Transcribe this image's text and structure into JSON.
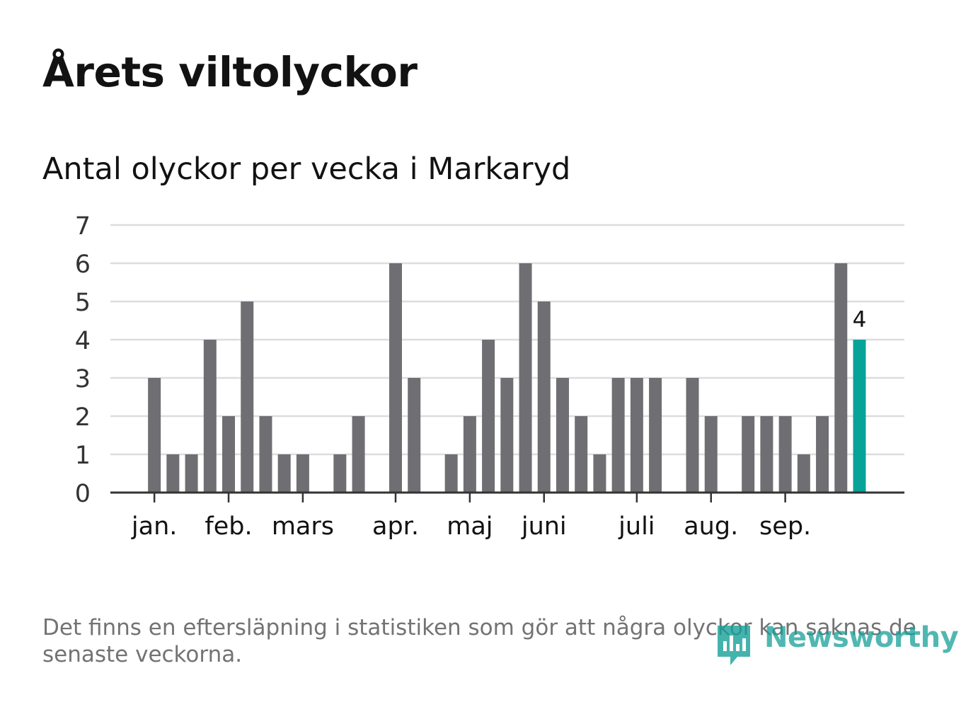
{
  "title": "Årets viltolyckor",
  "subtitle": "Antal olyckor per vecka i Markaryd",
  "footnote": "Det finns en eftersläpning i statistiken som gör att några olyckor kan saknas de senaste veckorna.",
  "logo_text": "Newsworthy",
  "colors": {
    "bar": "#6f6e73",
    "highlight": "#08a398",
    "grid": "#dddddd",
    "axis": "#333333",
    "text": "#121212",
    "muted": "#737373"
  },
  "chart_data": {
    "type": "bar",
    "title": "Antal olyckor per vecka i Markaryd",
    "xlabel": "",
    "ylabel": "",
    "ylim": [
      0,
      7
    ],
    "y_ticks": [
      0,
      1,
      2,
      3,
      4,
      5,
      6,
      7
    ],
    "weeks": [
      1,
      2,
      3,
      4,
      5,
      6,
      7,
      8,
      9,
      10,
      11,
      12,
      13,
      14,
      15,
      16,
      17,
      18,
      19,
      20,
      21,
      22,
      23,
      24,
      25,
      26,
      27,
      28,
      29,
      30,
      31,
      32,
      33,
      34,
      35,
      36,
      37,
      38,
      39,
      40,
      41,
      42,
      43,
      44
    ],
    "values": [
      0,
      0,
      3,
      1,
      1,
      4,
      2,
      5,
      2,
      1,
      1,
      0,
      1,
      2,
      0,
      6,
      3,
      0,
      1,
      2,
      4,
      3,
      6,
      5,
      3,
      2,
      1,
      3,
      3,
      3,
      0,
      3,
      2,
      0,
      2,
      2,
      2,
      1,
      2,
      6,
      4,
      0,
      0,
      0
    ],
    "highlight_week": 41,
    "highlight_label": "4",
    "month_labels": [
      {
        "label": "jan.",
        "week": 3
      },
      {
        "label": "feb.",
        "week": 7
      },
      {
        "label": "mars",
        "week": 11
      },
      {
        "label": "apr.",
        "week": 16
      },
      {
        "label": "maj",
        "week": 20
      },
      {
        "label": "juni",
        "week": 24
      },
      {
        "label": "juli",
        "week": 29
      },
      {
        "label": "aug.",
        "week": 33
      },
      {
        "label": "sep.",
        "week": 37
      }
    ]
  }
}
